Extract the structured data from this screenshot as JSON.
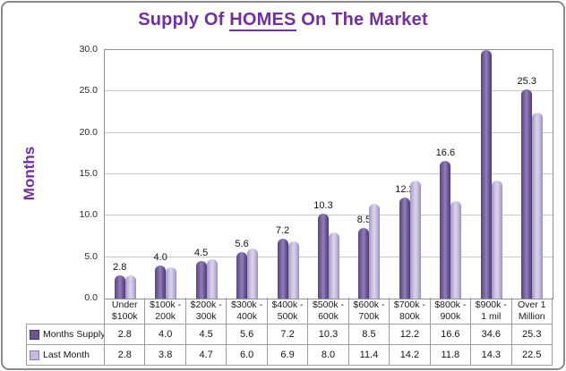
{
  "title": {
    "prefix": "Supply Of ",
    "highlight": "HOMES",
    "suffix": " On The Market"
  },
  "y_axis": {
    "title": "Months"
  },
  "colors": {
    "title_text": "#7030A0",
    "series_months_supply": "#6b5493",
    "series_last_month": "#c6badc",
    "gridline": "#c9c9c9",
    "border": "#9e9e9e"
  },
  "chart_data": {
    "type": "bar",
    "title": "Supply Of HOMES On The Market",
    "xlabel": "",
    "ylabel": "Months",
    "ylim": [
      0,
      30
    ],
    "ytick_step": 5,
    "ytick_format_decimals": 1,
    "grid": true,
    "legend_position": "data-table-left",
    "categories": [
      {
        "line1": "Under",
        "line2": "$100k"
      },
      {
        "line1": "$100k -",
        "line2": "200k"
      },
      {
        "line1": "$200k -",
        "line2": "300k"
      },
      {
        "line1": "$300k -",
        "line2": "400k"
      },
      {
        "line1": "$400k -",
        "line2": "500k"
      },
      {
        "line1": "$500k -",
        "line2": "600k"
      },
      {
        "line1": "$600k -",
        "line2": "700k"
      },
      {
        "line1": "$700k -",
        "line2": "800k"
      },
      {
        "line1": "$800k -",
        "line2": "900k"
      },
      {
        "line1": "$900k -",
        "line2": "1 mil"
      },
      {
        "line1": "Over 1",
        "line2": "Million"
      }
    ],
    "series": [
      {
        "name": "Months Supply",
        "values": [
          2.8,
          4.0,
          4.5,
          5.6,
          7.2,
          10.3,
          8.5,
          12.2,
          16.6,
          34.6,
          25.3
        ],
        "color": "#6b5493",
        "data_labels": true
      },
      {
        "name": "Last Month",
        "values": [
          2.8,
          3.8,
          4.7,
          6.0,
          6.9,
          8.0,
          11.4,
          14.2,
          11.8,
          14.3,
          22.5
        ],
        "color": "#c6badc",
        "data_labels": false
      }
    ]
  }
}
